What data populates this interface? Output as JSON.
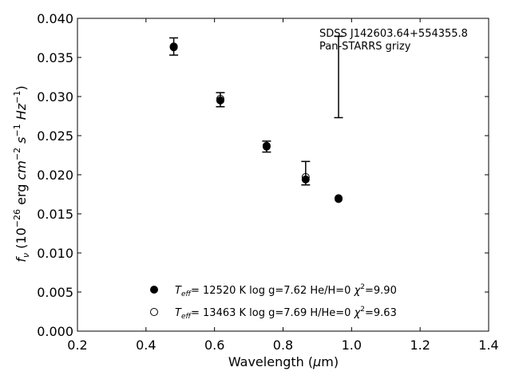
{
  "chart_data": {
    "type": "scatter",
    "annotation": [
      "SDSS J142603.64+554355.8",
      "Pan-STARRS grizy"
    ],
    "xlabel": {
      "main": "Wavelength (",
      "mu": "μ",
      "unit": "m)"
    },
    "ylabel": {
      "f": "f",
      "nu": "ν",
      "open": " (10",
      "exp1": "−26",
      "erg": " erg ",
      "cm": "cm",
      "exp2": "−2",
      "s": " s",
      "exp3": "−1",
      "hz": " Hz",
      "exp4": "−1",
      "close": ")"
    },
    "xlim": [
      0.2,
      1.4
    ],
    "ylim": [
      0.0,
      0.04
    ],
    "xticks": [
      "0.2",
      "0.4",
      "0.6",
      "0.8",
      "1.0",
      "1.2",
      "1.4"
    ],
    "yticks": [
      "0.000",
      "0.005",
      "0.010",
      "0.015",
      "0.020",
      "0.025",
      "0.030",
      "0.035",
      "0.040"
    ],
    "observed": {
      "x": [
        0.481,
        0.617,
        0.752,
        0.866,
        0.962
      ],
      "y": [
        0.0364,
        0.0296,
        0.0236,
        0.0202,
        0.0325
      ],
      "yerr": [
        0.0011,
        0.0009,
        0.0007,
        0.0015,
        0.0052
      ]
    },
    "series": [
      {
        "marker": "filled",
        "label": {
          "T": "T",
          "sub": "eff",
          "rest": "= 12520 K  log g=7.62  He/H=0  ",
          "chi": "χ",
          "sup": "2",
          "val": "=9.90"
        },
        "x": [
          0.481,
          0.617,
          0.752,
          0.866,
          0.962
        ],
        "y": [
          0.0363,
          0.0295,
          0.0236,
          0.0194,
          0.0169
        ]
      },
      {
        "marker": "open",
        "label": {
          "T": "T",
          "sub": "eff",
          "rest": "= 13463 K  log g=7.69  H/He=0  ",
          "chi": "χ",
          "sup": "2",
          "val": "=9.63"
        },
        "x": [
          0.481,
          0.617,
          0.752,
          0.866,
          0.962
        ],
        "y": [
          0.0364,
          0.0297,
          0.0237,
          0.0197,
          0.017
        ]
      }
    ]
  }
}
